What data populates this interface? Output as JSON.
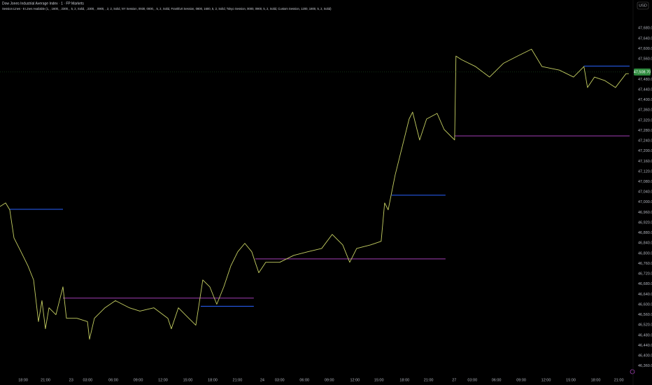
{
  "chart_data": {
    "type": "line",
    "title": "Dow Jones Industrial Average Index · 1 · FP Markets",
    "subtitle": "Session Lines - 6 Lines Available (1, , 1600, , 2300, , 5, 2, Solid, , 2300, , 0900, , 2, 2, Solid, NY Session, 0930, 0000, , 5, 2, Solid, Frankfurt Session, 0800, 1600, 5, 2, Solid, Tokyo Session, 0000, 0900, 5, 2, Solid, Custom Session, 1200, 1800, 5, 2, Solid)",
    "currency": "USD",
    "color": "#c5cf62",
    "x": [
      0,
      0.68,
      1.18,
      1.69,
      2.54,
      3.38,
      4.06,
      4.65,
      5.07,
      5.49,
      5.92,
      6.76,
      7.61,
      8.03,
      9.3,
      10.57,
      10.82,
      11.41,
      12.68,
      13.95,
      15.64,
      16.91,
      18.6,
      20.29,
      20.71,
      21.56,
      22.82,
      23.67,
      24.51,
      25.36,
      26.2,
      27.05,
      27.9,
      28.74,
      29.59,
      30.43,
      30.85,
      31.28,
      32.12,
      33.81,
      35.5,
      37.19,
      38.88,
      40.15,
      41.42,
      42.27,
      43.11,
      44.8,
      46.07,
      46.49,
      46.92,
      47.76,
      48.61,
      49.45,
      49.87,
      50.72,
      51.56,
      52.83,
      53.68,
      54.52,
      54.95,
      55.11,
      55.79,
      57.48,
      59.17,
      60.86,
      62.55,
      64.24,
      65.51,
      67.62,
      69.32,
      70.58,
      71.01,
      71.85,
      73.12,
      74.39,
      75.66,
      76.0
    ],
    "values": [
      46983,
      46997,
      46970,
      46860,
      46806,
      46751,
      46696,
      46533,
      46615,
      46505,
      46587,
      46560,
      46669,
      46546,
      46546,
      46533,
      46464,
      46546,
      46587,
      46615,
      46587,
      46574,
      46587,
      46546,
      46505,
      46587,
      46546,
      46519,
      46696,
      46669,
      46601,
      46669,
      46751,
      46806,
      46839,
      46806,
      46765,
      46724,
      46765,
      46765,
      46792,
      46806,
      46819,
      46874,
      46833,
      46765,
      46819,
      46833,
      46847,
      46997,
      46970,
      47106,
      47216,
      47325,
      47352,
      47243,
      47325,
      47347,
      47284,
      47257,
      47243,
      47571,
      47557,
      47530,
      47489,
      47543,
      47571,
      47598,
      47530,
      47516,
      47489,
      47530,
      47448,
      47489,
      47475,
      47448,
      47502,
      47502
    ],
    "session_lines": [
      {
        "x": [
          1.18,
          7.61
        ],
        "value": 46972,
        "color": "#2962ff"
      },
      {
        "x": [
          7.61,
          30.68
        ],
        "value": 46625,
        "color": "#a23fb5"
      },
      {
        "x": [
          24.26,
          30.68
        ],
        "value": 46593,
        "color": "#2962ff"
      },
      {
        "x": [
          30.85,
          53.85
        ],
        "value": 46778,
        "color": "#a23fb5"
      },
      {
        "x": [
          47.34,
          53.85
        ],
        "value": 47027,
        "color": "#2962ff"
      },
      {
        "x": [
          54.95,
          76.1
        ],
        "value": 47259,
        "color": "#a23fb5"
      },
      {
        "x": [
          70.58,
          76.1
        ],
        "value": 47532,
        "color": "#2962ff"
      }
    ],
    "last_price": {
      "value": 47508.7,
      "label": "47,508.70"
    },
    "xlim": [
      0,
      76.1
    ],
    "ylim": [
      46340,
      47730
    ],
    "grid": false,
    "xticks": [
      {
        "value": 2.8,
        "label": "18:00"
      },
      {
        "value": 5.5,
        "label": "21:00"
      },
      {
        "value": 8.6,
        "label": "23"
      },
      {
        "value": 10.6,
        "label": "03:00"
      },
      {
        "value": 13.7,
        "label": "06:00"
      },
      {
        "value": 16.7,
        "label": "09:00"
      },
      {
        "value": 19.7,
        "label": "12:00"
      },
      {
        "value": 22.7,
        "label": "15:00"
      },
      {
        "value": 25.7,
        "label": "18:00"
      },
      {
        "value": 28.7,
        "label": "21:00"
      },
      {
        "value": 31.7,
        "label": "24"
      },
      {
        "value": 33.8,
        "label": "03:00"
      },
      {
        "value": 36.8,
        "label": "06:00"
      },
      {
        "value": 39.8,
        "label": "09:00"
      },
      {
        "value": 42.9,
        "label": "12:00"
      },
      {
        "value": 45.8,
        "label": "15:00"
      },
      {
        "value": 48.9,
        "label": "18:00"
      },
      {
        "value": 51.8,
        "label": "21:00"
      },
      {
        "value": 54.9,
        "label": "27"
      },
      {
        "value": 57.1,
        "label": "03:00"
      },
      {
        "value": 60,
        "label": "06:00"
      },
      {
        "value": 63,
        "label": "09:00"
      },
      {
        "value": 66,
        "label": "12:00"
      },
      {
        "value": 69,
        "label": "15:00"
      },
      {
        "value": 72,
        "label": "18:00"
      },
      {
        "value": 74.8,
        "label": "21:00"
      }
    ],
    "yticks": [
      {
        "value": 46360,
        "label": "46,360.00"
      },
      {
        "value": 46400,
        "label": "46,400.00"
      },
      {
        "value": 46440,
        "label": "46,440.00"
      },
      {
        "value": 46480,
        "label": "46,480.00"
      },
      {
        "value": 46520,
        "label": "46,520.00"
      },
      {
        "value": 46560,
        "label": "46,560.00"
      },
      {
        "value": 46600,
        "label": "46,600.00"
      },
      {
        "value": 46640,
        "label": "46,640.00"
      },
      {
        "value": 46680,
        "label": "46,680.00"
      },
      {
        "value": 46720,
        "label": "46,720.00"
      },
      {
        "value": 46760,
        "label": "46,760.00"
      },
      {
        "value": 46800,
        "label": "46,800.00"
      },
      {
        "value": 46840,
        "label": "46,840.00"
      },
      {
        "value": 46880,
        "label": "46,880.00"
      },
      {
        "value": 46920,
        "label": "46,920.00"
      },
      {
        "value": 46960,
        "label": "46,960.00"
      },
      {
        "value": 47000,
        "label": "47,000.00"
      },
      {
        "value": 47040,
        "label": "47,040.00"
      },
      {
        "value": 47080,
        "label": "47,080.00"
      },
      {
        "value": 47120,
        "label": "47,120.00"
      },
      {
        "value": 47160,
        "label": "47,160.00"
      },
      {
        "value": 47200,
        "label": "47,200.00"
      },
      {
        "value": 47240,
        "label": "47,240.00"
      },
      {
        "value": 47280,
        "label": "47,280.00"
      },
      {
        "value": 47320,
        "label": "47,320.00"
      },
      {
        "value": 47360,
        "label": "47,360.00"
      },
      {
        "value": 47400,
        "label": "47,400.00"
      },
      {
        "value": 47440,
        "label": "47,440.00"
      },
      {
        "value": 47480,
        "label": "47,480.00"
      },
      {
        "value": 47560,
        "label": "47,560.00"
      },
      {
        "value": 47600,
        "label": "47,600.00"
      },
      {
        "value": 47640,
        "label": "47,640.00"
      },
      {
        "value": 47680,
        "label": "47,680.00"
      }
    ]
  }
}
